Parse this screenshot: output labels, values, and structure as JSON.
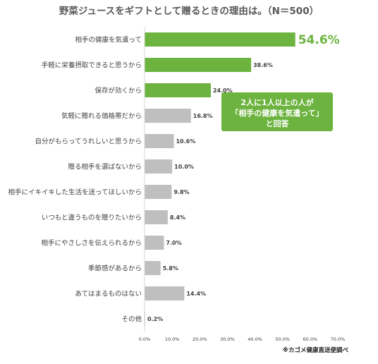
{
  "chart_data": {
    "type": "bar",
    "orientation": "horizontal",
    "title": "野菜ジュースをギフトとして贈るときの理由は。（N＝500）",
    "categories": [
      "相手の健康を気遣って",
      "手軽に栄養摂取できると思うから",
      "保存が効くから",
      "気軽に贈れる価格帯だから",
      "自分がもらってうれしいと思うから",
      "贈る相手を選ばないから",
      "相手にイキイキした生活を送ってほしいから",
      "いつもと違うものを贈りたいから",
      "相手にやさしさを伝えられるから",
      "季節感があるから",
      "あてはまるものはない",
      "その他"
    ],
    "values": [
      54.6,
      38.6,
      24.0,
      16.8,
      10.6,
      10.0,
      9.8,
      8.4,
      7.0,
      5.8,
      14.4,
      0.2
    ],
    "value_labels": [
      "54.6%",
      "38.6%",
      "24.0%",
      "16.8%",
      "10.6%",
      "10.0%",
      "9.8%",
      "8.4%",
      "7.0%",
      "5.8%",
      "14.4%",
      "0.2%"
    ],
    "highlight_count": 3,
    "xlim": [
      0,
      70
    ],
    "xticks": [
      "0.0%",
      "10.0%",
      "20.0%",
      "30.0%",
      "40.0%",
      "50.0%",
      "60.0%",
      "70.0%"
    ],
    "grid": false,
    "colors": {
      "highlight": "#6db33f",
      "default": "#bfbfbf",
      "axis": "#d9d9d9"
    },
    "annotation": [
      "2人に1人以上の人が",
      "「相手の健康を気遣って」",
      "と回答"
    ],
    "source": "※カゴメ健康直送便調べ"
  }
}
